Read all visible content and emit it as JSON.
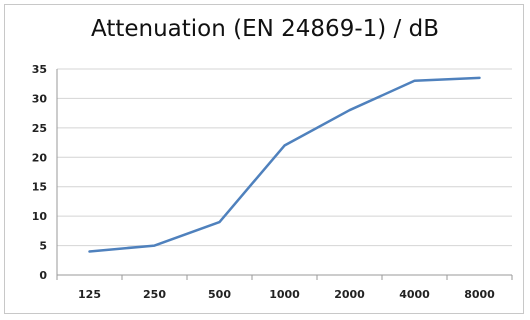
{
  "chart_data": {
    "type": "line",
    "title": "Attenuation (EN 24869-1) / dB",
    "xlabel": "",
    "ylabel": "",
    "categories": [
      "125",
      "250",
      "500",
      "1000",
      "2000",
      "4000",
      "8000"
    ],
    "series": [
      {
        "values": [
          4,
          5,
          9,
          22,
          28,
          33,
          33.5
        ]
      }
    ],
    "ylim": [
      0,
      35
    ],
    "yticks": [
      0,
      5,
      10,
      15,
      20,
      25,
      30,
      35
    ],
    "grid": true,
    "legend": "none",
    "line_color": "#4f81bd",
    "grid_color": "#d4d4d4"
  }
}
